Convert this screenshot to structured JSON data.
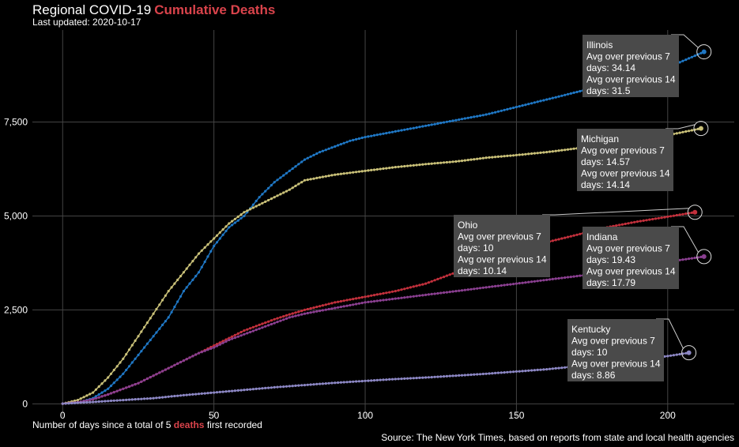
{
  "header": {
    "title_main": "Regional COVID-19",
    "title_accent": "Cumulative Deaths",
    "subtitle": "Last updated: 2020-10-17"
  },
  "footer": {
    "xlabel_before": "Number of days since a total of 5",
    "xlabel_accent": "deaths",
    "xlabel_after": "first recorded",
    "source": "Source: The New York Times, based on reports from state and local health agencies"
  },
  "colors": {
    "background": "#000000",
    "grid": "#444444",
    "accent": "#d9434b",
    "annotation_bg": "#4a4a4a"
  },
  "chart_data": {
    "type": "line",
    "title": "Regional COVID-19 Cumulative Deaths",
    "xlabel": "Number of days since a total of 5 deaths first recorded",
    "ylabel": "",
    "xlim": [
      -10,
      222
    ],
    "ylim": [
      -350,
      9950
    ],
    "x_ticks": [
      0,
      50,
      100,
      150,
      200
    ],
    "y_ticks": [
      0,
      2500,
      5000,
      7500
    ],
    "y_tick_labels": [
      "0",
      "2,500",
      "5,000",
      "7,500"
    ],
    "grid": true,
    "legend": "none",
    "series": [
      {
        "name": "Illinois",
        "color": "#1f77c4",
        "points": [
          [
            0,
            5
          ],
          [
            5,
            30
          ],
          [
            10,
            150
          ],
          [
            15,
            400
          ],
          [
            20,
            800
          ],
          [
            25,
            1300
          ],
          [
            30,
            1800
          ],
          [
            35,
            2300
          ],
          [
            40,
            3000
          ],
          [
            45,
            3500
          ],
          [
            50,
            4200
          ],
          [
            55,
            4700
          ],
          [
            60,
            5000
          ],
          [
            65,
            5500
          ],
          [
            70,
            5900
          ],
          [
            75,
            6200
          ],
          [
            80,
            6500
          ],
          [
            85,
            6700
          ],
          [
            90,
            6850
          ],
          [
            95,
            7000
          ],
          [
            100,
            7100
          ],
          [
            110,
            7250
          ],
          [
            120,
            7400
          ],
          [
            130,
            7550
          ],
          [
            140,
            7700
          ],
          [
            150,
            7900
          ],
          [
            160,
            8100
          ],
          [
            170,
            8300
          ],
          [
            180,
            8500
          ],
          [
            190,
            8700
          ],
          [
            200,
            8950
          ],
          [
            212,
            9370
          ]
        ],
        "annotation": {
          "title": "Illinois",
          "lines": [
            "Avg over previous 7",
            "days: 34.14",
            "Avg over previous 14",
            "days: 31.5"
          ]
        }
      },
      {
        "name": "Michigan",
        "color": "#c9c078",
        "points": [
          [
            0,
            5
          ],
          [
            5,
            100
          ],
          [
            10,
            300
          ],
          [
            15,
            700
          ],
          [
            20,
            1200
          ],
          [
            25,
            1800
          ],
          [
            30,
            2400
          ],
          [
            35,
            3000
          ],
          [
            40,
            3500
          ],
          [
            45,
            4000
          ],
          [
            50,
            4400
          ],
          [
            55,
            4800
          ],
          [
            60,
            5100
          ],
          [
            65,
            5300
          ],
          [
            70,
            5500
          ],
          [
            75,
            5700
          ],
          [
            80,
            5950
          ],
          [
            90,
            6100
          ],
          [
            100,
            6200
          ],
          [
            110,
            6300
          ],
          [
            120,
            6380
          ],
          [
            130,
            6450
          ],
          [
            140,
            6550
          ],
          [
            150,
            6620
          ],
          [
            160,
            6700
          ],
          [
            170,
            6800
          ],
          [
            180,
            6900
          ],
          [
            190,
            7050
          ],
          [
            200,
            7150
          ],
          [
            211,
            7330
          ]
        ],
        "annotation": {
          "title": "Michigan",
          "lines": [
            "Avg over previous 7",
            "days: 14.57",
            "Avg over previous 14",
            "days: 14.14"
          ]
        }
      },
      {
        "name": "Ohio",
        "color": "#c2303c",
        "points": [
          [
            0,
            5
          ],
          [
            5,
            40
          ],
          [
            10,
            120
          ],
          [
            15,
            250
          ],
          [
            20,
            400
          ],
          [
            25,
            550
          ],
          [
            30,
            750
          ],
          [
            35,
            950
          ],
          [
            40,
            1150
          ],
          [
            45,
            1350
          ],
          [
            50,
            1550
          ],
          [
            55,
            1750
          ],
          [
            60,
            1950
          ],
          [
            65,
            2100
          ],
          [
            70,
            2250
          ],
          [
            75,
            2380
          ],
          [
            80,
            2500
          ],
          [
            90,
            2700
          ],
          [
            100,
            2850
          ],
          [
            110,
            3000
          ],
          [
            120,
            3200
          ],
          [
            130,
            3500
          ],
          [
            140,
            3800
          ],
          [
            150,
            4050
          ],
          [
            160,
            4300
          ],
          [
            170,
            4500
          ],
          [
            180,
            4700
          ],
          [
            190,
            4850
          ],
          [
            200,
            4980
          ],
          [
            209,
            5100
          ]
        ],
        "annotation": {
          "title": "Ohio",
          "lines": [
            "Avg over previous 7",
            "days: 10",
            "Avg over previous 14",
            "days: 10.14"
          ]
        }
      },
      {
        "name": "Indiana",
        "color": "#8a3f90",
        "points": [
          [
            0,
            5
          ],
          [
            5,
            40
          ],
          [
            10,
            120
          ],
          [
            15,
            250
          ],
          [
            20,
            400
          ],
          [
            25,
            550
          ],
          [
            30,
            750
          ],
          [
            35,
            950
          ],
          [
            40,
            1150
          ],
          [
            45,
            1350
          ],
          [
            50,
            1500
          ],
          [
            55,
            1700
          ],
          [
            60,
            1850
          ],
          [
            65,
            2000
          ],
          [
            70,
            2150
          ],
          [
            75,
            2300
          ],
          [
            80,
            2400
          ],
          [
            90,
            2550
          ],
          [
            100,
            2700
          ],
          [
            110,
            2800
          ],
          [
            120,
            2900
          ],
          [
            130,
            3000
          ],
          [
            140,
            3100
          ],
          [
            150,
            3200
          ],
          [
            160,
            3300
          ],
          [
            170,
            3400
          ],
          [
            180,
            3500
          ],
          [
            190,
            3650
          ],
          [
            200,
            3780
          ],
          [
            212,
            3920
          ]
        ],
        "annotation": {
          "title": "Indiana",
          "lines": [
            "Avg over previous 7",
            "days: 19.43",
            "Avg over previous 14",
            "days: 17.79"
          ]
        }
      },
      {
        "name": "Kentucky",
        "color": "#8c87c4",
        "points": [
          [
            0,
            5
          ],
          [
            10,
            50
          ],
          [
            20,
            100
          ],
          [
            30,
            150
          ],
          [
            40,
            230
          ],
          [
            50,
            300
          ],
          [
            60,
            370
          ],
          [
            70,
            440
          ],
          [
            80,
            500
          ],
          [
            90,
            560
          ],
          [
            100,
            610
          ],
          [
            110,
            660
          ],
          [
            120,
            700
          ],
          [
            130,
            750
          ],
          [
            140,
            800
          ],
          [
            150,
            860
          ],
          [
            160,
            920
          ],
          [
            170,
            1000
          ],
          [
            180,
            1080
          ],
          [
            190,
            1170
          ],
          [
            200,
            1270
          ],
          [
            207,
            1360
          ]
        ],
        "annotation": {
          "title": "Kentucky",
          "lines": [
            "Avg over previous 7",
            "days: 10",
            "Avg over previous 14",
            "days: 8.86"
          ]
        }
      }
    ]
  }
}
